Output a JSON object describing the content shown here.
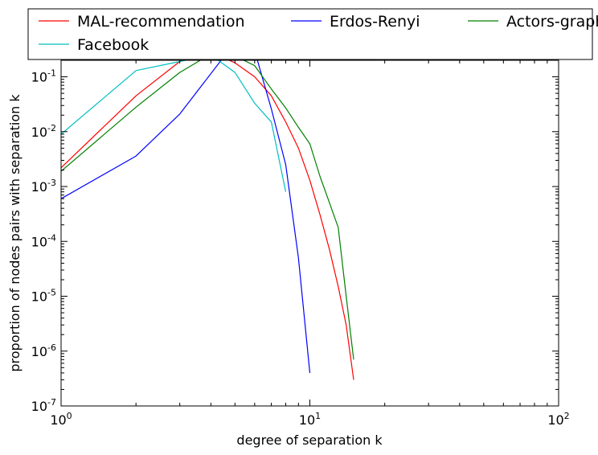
{
  "chart_data": {
    "type": "line",
    "title": "",
    "xlabel": "degree of separation k",
    "ylabel": "proportion of nodes pairs with separation k",
    "xscale": "log",
    "yscale": "log",
    "xlim": [
      1,
      100
    ],
    "ylim": [
      1e-07,
      0.2
    ],
    "x_ticks": [
      {
        "value": 1,
        "base": "10",
        "exp": "0"
      },
      {
        "value": 10,
        "base": "10",
        "exp": "1"
      },
      {
        "value": 100,
        "base": "10",
        "exp": "2"
      }
    ],
    "y_ticks": [
      {
        "value": 1e-07,
        "base": "10",
        "exp": "-7"
      },
      {
        "value": 1e-06,
        "base": "10",
        "exp": "-6"
      },
      {
        "value": 1e-05,
        "base": "10",
        "exp": "-5"
      },
      {
        "value": 0.0001,
        "base": "10",
        "exp": "-4"
      },
      {
        "value": 0.001,
        "base": "10",
        "exp": "-3"
      },
      {
        "value": 0.01,
        "base": "10",
        "exp": "-2"
      },
      {
        "value": 0.1,
        "base": "10",
        "exp": "-1"
      }
    ],
    "grid": false,
    "legend_position": "top",
    "legend_columns": 3,
    "series": [
      {
        "name": "MAL-recommendation",
        "color": "#ff0000",
        "points": [
          [
            1,
            0.0022
          ],
          [
            2,
            0.045
          ],
          [
            3,
            0.19
          ],
          [
            4,
            0.28
          ],
          [
            5,
            0.18
          ],
          [
            6,
            0.1
          ],
          [
            7,
            0.045
          ],
          [
            8,
            0.015
          ],
          [
            9,
            0.005
          ],
          [
            10,
            0.0013
          ],
          [
            11,
            0.0003
          ],
          [
            12,
            7e-05
          ],
          [
            13,
            1.5e-05
          ],
          [
            14,
            3e-06
          ],
          [
            15,
            3e-07
          ]
        ]
      },
      {
        "name": "Erdos-Renyi",
        "color": "#0000ff",
        "points": [
          [
            1,
            0.0006
          ],
          [
            2,
            0.0036
          ],
          [
            3,
            0.021
          ],
          [
            4.4,
            0.2
          ],
          [
            5,
            0.32
          ],
          [
            6,
            0.3
          ],
          [
            7,
            0.026
          ],
          [
            8,
            0.0025
          ],
          [
            9,
            5e-05
          ],
          [
            10,
            4e-07
          ]
        ]
      },
      {
        "name": "Actors-graph",
        "color": "#008000",
        "points": [
          [
            1,
            0.0019
          ],
          [
            2,
            0.028
          ],
          [
            3,
            0.12
          ],
          [
            4,
            0.26
          ],
          [
            5,
            0.24
          ],
          [
            6,
            0.16
          ],
          [
            7,
            0.06
          ],
          [
            8,
            0.027
          ],
          [
            9,
            0.012
          ],
          [
            10,
            0.006
          ],
          [
            11,
            0.0015
          ],
          [
            12,
            0.0005
          ],
          [
            13,
            0.00018
          ],
          [
            14,
            1e-05
          ],
          [
            15,
            7e-07
          ]
        ]
      },
      {
        "name": "Facebook",
        "color": "#00bfbf",
        "points": [
          [
            1,
            0.009
          ],
          [
            2,
            0.13
          ],
          [
            3,
            0.19
          ],
          [
            4,
            0.25
          ],
          [
            5,
            0.12
          ],
          [
            6,
            0.033
          ],
          [
            7,
            0.015
          ],
          [
            8,
            0.0008
          ]
        ]
      }
    ]
  }
}
